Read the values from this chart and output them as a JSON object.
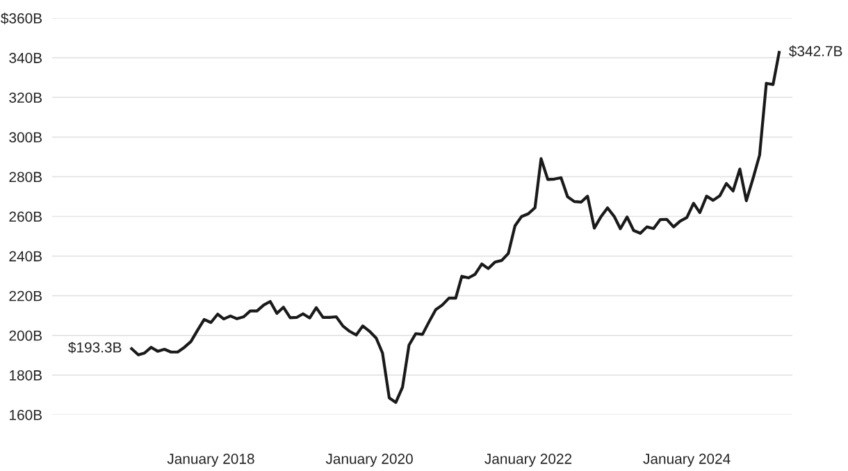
{
  "chart_data": {
    "type": "line",
    "x": [
      "2017-01",
      "2017-02",
      "2017-03",
      "2017-04",
      "2017-05",
      "2017-06",
      "2017-07",
      "2017-08",
      "2017-09",
      "2017-10",
      "2017-11",
      "2017-12",
      "2018-01",
      "2018-02",
      "2018-03",
      "2018-04",
      "2018-05",
      "2018-06",
      "2018-07",
      "2018-08",
      "2018-09",
      "2018-10",
      "2018-11",
      "2018-12",
      "2019-01",
      "2019-02",
      "2019-03",
      "2019-04",
      "2019-05",
      "2019-06",
      "2019-07",
      "2019-08",
      "2019-09",
      "2019-10",
      "2019-11",
      "2019-12",
      "2020-01",
      "2020-02",
      "2020-03",
      "2020-04",
      "2020-05",
      "2020-06",
      "2020-07",
      "2020-08",
      "2020-09",
      "2020-10",
      "2020-11",
      "2020-12",
      "2021-01",
      "2021-02",
      "2021-03",
      "2021-04",
      "2021-05",
      "2021-06",
      "2021-07",
      "2021-08",
      "2021-09",
      "2021-10",
      "2021-11",
      "2021-12",
      "2022-01",
      "2022-02",
      "2022-03",
      "2022-04",
      "2022-05",
      "2022-06",
      "2022-07",
      "2022-08",
      "2022-09",
      "2022-10",
      "2022-11",
      "2022-12",
      "2023-01",
      "2023-02",
      "2023-03",
      "2023-04",
      "2023-05",
      "2023-06",
      "2023-07",
      "2023-08",
      "2023-09",
      "2023-10",
      "2023-11",
      "2023-12",
      "2024-01",
      "2024-02",
      "2024-03",
      "2024-04",
      "2024-05",
      "2024-06",
      "2024-07",
      "2024-08",
      "2024-09",
      "2024-10",
      "2024-11",
      "2024-12",
      "2025-01",
      "2025-02",
      "2025-03"
    ],
    "series": [
      {
        "color": "#1a1a1a",
        "values": [
          193.3,
          190.2,
          191.1,
          194.0,
          192.0,
          193.0,
          191.6,
          191.6,
          194.0,
          196.9,
          202.7,
          208.0,
          206.5,
          210.7,
          208.3,
          209.8,
          208.4,
          209.4,
          212.3,
          212.3,
          215.3,
          217.1,
          211.1,
          214.2,
          208.9,
          209.1,
          210.9,
          208.8,
          214.0,
          209.1,
          209.1,
          209.4,
          204.7,
          202.1,
          200.2,
          204.8,
          202.1,
          198.6,
          191.1,
          168.5,
          166.2,
          173.9,
          195.1,
          200.9,
          200.5,
          206.8,
          213.0,
          215.3,
          218.8,
          218.8,
          229.8,
          229.0,
          230.8,
          236.0,
          233.7,
          237.0,
          237.8,
          241.3,
          255.3,
          259.9,
          261.3,
          264.4,
          289.1,
          278.6,
          278.8,
          279.5,
          269.9,
          267.5,
          267.2,
          270.2,
          254.1,
          259.7,
          264.3,
          259.9,
          253.8,
          259.7,
          252.9,
          251.5,
          254.7,
          253.9,
          258.4,
          258.5,
          254.7,
          257.6,
          259.4,
          266.6,
          261.9,
          270.2,
          268.1,
          270.4,
          276.6,
          272.8,
          283.9,
          267.9,
          279.2,
          290.9,
          327.1,
          326.5,
          342.7
        ]
      }
    ],
    "xlim": [
      "2016-01",
      "2025-05"
    ],
    "xticks": [
      {
        "value": "2018-01",
        "label": "January 2018"
      },
      {
        "value": "2020-01",
        "label": "January 2020"
      },
      {
        "value": "2022-01",
        "label": "January 2022"
      },
      {
        "value": "2024-01",
        "label": "January 2024"
      }
    ],
    "ylim": [
      160,
      360
    ],
    "yticks": [
      {
        "value": 160,
        "label": "160B"
      },
      {
        "value": 180,
        "label": "180B"
      },
      {
        "value": 200,
        "label": "200B"
      },
      {
        "value": 220,
        "label": "220B"
      },
      {
        "value": 240,
        "label": "240B"
      },
      {
        "value": 260,
        "label": "260B"
      },
      {
        "value": 280,
        "label": "280B"
      },
      {
        "value": 300,
        "label": "300B"
      },
      {
        "value": 320,
        "label": "320B"
      },
      {
        "value": 340,
        "label": "340B"
      },
      {
        "value": 360,
        "label": "$360B"
      }
    ],
    "grid": "y",
    "line_style": "solid",
    "marker": "none",
    "legend": false,
    "annotations": [
      {
        "text": "$193.3B",
        "x": "2017-01",
        "y": 193.3
      },
      {
        "text": "$342.7B",
        "x": "2025-03",
        "y": 342.7
      }
    ]
  }
}
